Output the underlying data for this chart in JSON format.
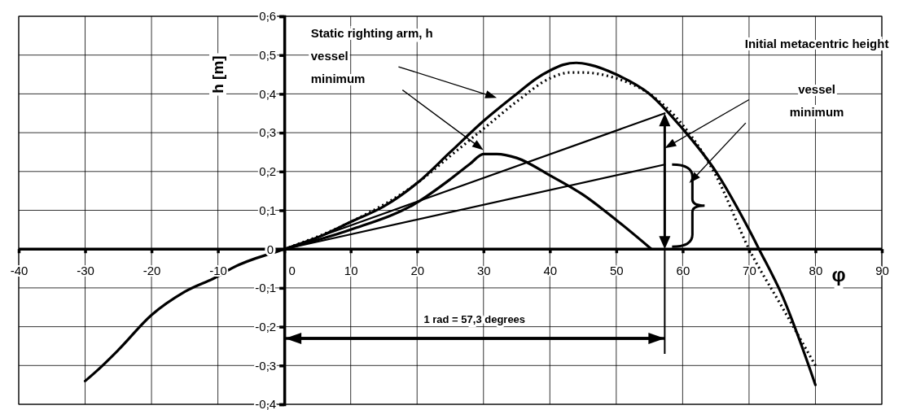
{
  "chart_data": {
    "type": "line",
    "xlabel": "φ",
    "ylabel": "h [m]",
    "xlim": [
      -40,
      90
    ],
    "xticks": [
      -40,
      -30,
      -20,
      -10,
      0,
      10,
      20,
      30,
      40,
      50,
      60,
      70,
      80,
      90
    ],
    "ylim": [
      -0.4,
      0.6
    ],
    "yticks": [
      {
        "value": -0.4,
        "label": "-0,4"
      },
      {
        "value": -0.3,
        "label": "-0,3"
      },
      {
        "value": -0.2,
        "label": "-0,2"
      },
      {
        "value": -0.1,
        "label": "-0,1"
      },
      0,
      {
        "value": 0.1,
        "label": "0,1"
      },
      {
        "value": 0.2,
        "label": "0,2"
      },
      {
        "value": 0.3,
        "label": "0,3"
      },
      {
        "value": 0.4,
        "label": "0,4"
      },
      {
        "value": 0.5,
        "label": "0,5"
      },
      {
        "value": 0.6,
        "label": "0,6"
      }
    ],
    "grid": true,
    "marker": "none",
    "ref_lines": [
      {
        "axis": "y",
        "value": 0
      }
    ],
    "series": [
      {
        "color": "#000000",
        "line_style": "solid",
        "x": [
          -30,
          -28,
          -25,
          -20,
          -15,
          -10,
          -8,
          0,
          5,
          10,
          15,
          20,
          25,
          30,
          35,
          38,
          40,
          42,
          44,
          46,
          50,
          55,
          60,
          65,
          70,
          71.5,
          75,
          80
        ],
        "values": [
          -0.34,
          -0.31,
          -0.26,
          -0.17,
          -0.11,
          -0.07,
          -0.05,
          0,
          0.03,
          0.07,
          0.11,
          0.17,
          0.25,
          0.33,
          0.4,
          0.44,
          0.46,
          0.475,
          0.48,
          0.475,
          0.45,
          0.4,
          0.31,
          0.2,
          0.05,
          0,
          -0.12,
          -0.35
        ]
      },
      {
        "color": "#000000",
        "line_style": "dotted",
        "x": [
          0,
          10,
          20,
          25,
          30,
          35,
          40,
          43,
          45,
          50,
          55,
          60,
          65,
          70,
          75,
          80
        ],
        "values": [
          0,
          0.07,
          0.17,
          0.24,
          0.31,
          0.38,
          0.44,
          0.455,
          0.455,
          0.44,
          0.4,
          0.32,
          0.19,
          0,
          -0.15,
          -0.3
        ]
      },
      {
        "color": "#000000",
        "line_style": "solid",
        "x": [
          0,
          10,
          20,
          25,
          28,
          30,
          32,
          35,
          40,
          45,
          50,
          55.3
        ],
        "values": [
          0,
          0.05,
          0.12,
          0.18,
          0.22,
          0.245,
          0.245,
          0.235,
          0.19,
          0.14,
          0.075,
          0
        ]
      },
      {
        "color": "#000000",
        "line_style": "solid",
        "x": [
          0,
          57.3
        ],
        "values": [
          0,
          0.35
        ]
      },
      {
        "color": "#000000",
        "line_style": "solid",
        "x": [
          0,
          57.3
        ],
        "values": [
          0,
          0.218
        ]
      }
    ],
    "annotations": [
      "Static righting arm, h",
      "vessel",
      "minimum",
      "Initial metacentric height",
      "vessel",
      "minimum",
      "1 rad = 57,3 degrees"
    ]
  }
}
